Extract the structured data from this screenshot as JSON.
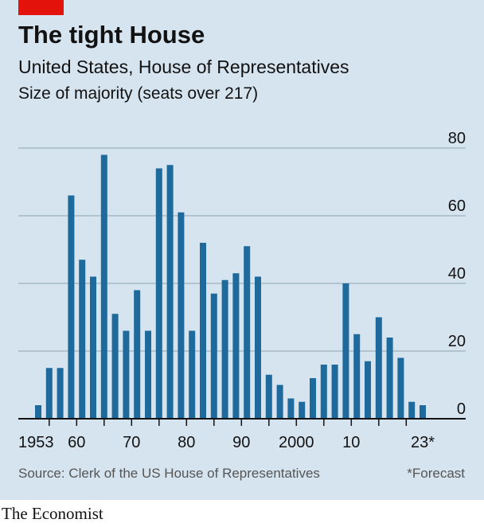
{
  "header": {
    "title": "The tight House",
    "subtitle": "United States, House of Representatives",
    "unit_label": "Size of majority (seats over 217)"
  },
  "footer": {
    "source": "Source: Clerk of the US House of Representatives",
    "footnote": "*Forecast",
    "brand": "The Economist"
  },
  "colors": {
    "bar": "#1f6a9c",
    "gridline": "#a7b9c7",
    "axis": "#121212",
    "background": "#d6e4ef",
    "accent": "#e3120b"
  },
  "chart_data": {
    "type": "bar",
    "title": "The tight House",
    "subtitle": "United States, House of Representatives",
    "ylabel": "Size of majority (seats over 217)",
    "xlabel": "",
    "ylim": [
      0,
      80
    ],
    "yticks": [
      0,
      20,
      40,
      60,
      80
    ],
    "y_axis_side": "right",
    "grid": true,
    "x": [
      1953,
      1955,
      1957,
      1959,
      1961,
      1963,
      1965,
      1967,
      1969,
      1971,
      1973,
      1975,
      1977,
      1979,
      1981,
      1983,
      1985,
      1987,
      1989,
      1991,
      1993,
      1995,
      1997,
      1999,
      2001,
      2003,
      2005,
      2007,
      2009,
      2011,
      2013,
      2015,
      2017,
      2019,
      2021,
      2023
    ],
    "values": [
      4,
      15,
      15,
      66,
      47,
      42,
      78,
      31,
      26,
      38,
      26,
      74,
      75,
      61,
      26,
      52,
      37,
      41,
      43,
      51,
      42,
      13,
      10,
      6,
      5,
      12,
      16,
      16,
      40,
      25,
      17,
      30,
      24,
      18,
      5,
      4
    ],
    "xtick_labels": [
      {
        "x": 1953,
        "label": "1953"
      },
      {
        "x": 1960,
        "label": "60"
      },
      {
        "x": 1970,
        "label": "70"
      },
      {
        "x": 1980,
        "label": "80"
      },
      {
        "x": 1990,
        "label": "90"
      },
      {
        "x": 2000,
        "label": "2000"
      },
      {
        "x": 2010,
        "label": "10"
      },
      {
        "x": 2023,
        "label": "23*"
      }
    ],
    "minor_ticks": [
      1955,
      1960,
      1965,
      1970,
      1975,
      1980,
      1985,
      1990,
      1995,
      2000,
      2005,
      2010,
      2015,
      2020
    ]
  }
}
